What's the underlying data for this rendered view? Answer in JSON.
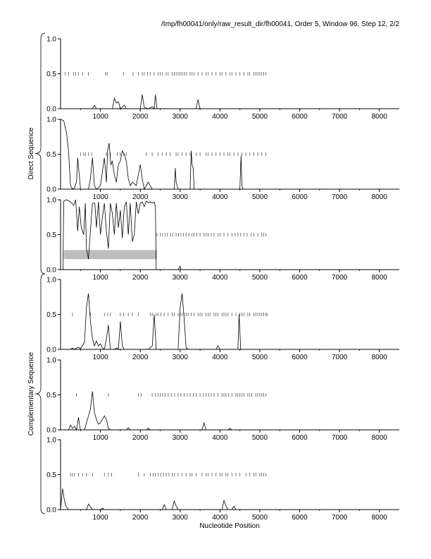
{
  "header": {
    "title": "/tmp/fh00041/only/raw_result_dir/fh00041, Order 5, Window 96, Step 12, 2/2"
  },
  "groups": [
    {
      "label": "Direct Sequence",
      "panels": [
        0,
        1,
        2
      ]
    },
    {
      "label": "Complementary Sequence",
      "panels": [
        3,
        4,
        5
      ]
    }
  ],
  "colors": {
    "line": "#000000",
    "axis": "#000000",
    "band": "#bdbdbd",
    "marks": "#555555"
  },
  "chart_data": {
    "type": "line",
    "xlabel": "Nucleotide Position",
    "ylabel": "",
    "xlim": [
      0,
      8500
    ],
    "ylim": [
      0,
      1
    ],
    "xticks": [
      "1000",
      "2000",
      "3000",
      "4000",
      "5000",
      "6000",
      "7000",
      "8000"
    ],
    "yticks": [
      "0.0",
      "0.5",
      "1.0"
    ],
    "panels": [
      {
        "series": [
          [
            0,
            0
          ],
          [
            300,
            0
          ],
          [
            800,
            0
          ],
          [
            850,
            0.05
          ],
          [
            900,
            0
          ],
          [
            1300,
            0
          ],
          [
            1350,
            0.15
          ],
          [
            1400,
            0.08
          ],
          [
            1450,
            0.1
          ],
          [
            1500,
            0
          ],
          [
            1600,
            0.05
          ],
          [
            1650,
            0
          ],
          [
            2000,
            0
          ],
          [
            2050,
            0.2
          ],
          [
            2100,
            0.02
          ],
          [
            2200,
            0
          ],
          [
            2300,
            0.03
          ],
          [
            2350,
            0
          ],
          [
            2380,
            0.2
          ],
          [
            2420,
            0
          ],
          [
            3400,
            0
          ],
          [
            3450,
            0.13
          ],
          [
            3500,
            0
          ],
          [
            8500,
            0
          ]
        ],
        "marks": [
          120,
          200,
          330,
          380,
          450,
          550,
          700,
          1130,
          1170,
          1580,
          1820,
          1950,
          2050,
          2100,
          2180,
          2250,
          2350,
          2450,
          2500,
          2560,
          2650,
          2700,
          2800,
          2850,
          2900,
          2950,
          3000,
          3050,
          3100,
          3150,
          3250,
          3300,
          3350,
          3450,
          3550,
          3650,
          3700,
          3800,
          3900,
          4000,
          4050,
          4150,
          4250,
          4300,
          4400,
          4500,
          4600,
          4700,
          4750,
          4850,
          4900,
          4950,
          5000,
          5050,
          5100,
          5150
        ]
      },
      {
        "series": [
          [
            0,
            1
          ],
          [
            80,
            0.98
          ],
          [
            150,
            0.8
          ],
          [
            200,
            0.55
          ],
          [
            250,
            0.05
          ],
          [
            300,
            0
          ],
          [
            350,
            0.02
          ],
          [
            400,
            0.1
          ],
          [
            430,
            0.45
          ],
          [
            470,
            0.2
          ],
          [
            500,
            0
          ],
          [
            700,
            0
          ],
          [
            750,
            0.15
          ],
          [
            800,
            0.45
          ],
          [
            850,
            0.05
          ],
          [
            900,
            0
          ],
          [
            1000,
            0.05
          ],
          [
            1050,
            0.25
          ],
          [
            1100,
            0.45
          ],
          [
            1150,
            0.1
          ],
          [
            1180,
            0.55
          ],
          [
            1220,
            0.66
          ],
          [
            1260,
            0.35
          ],
          [
            1300,
            0.4
          ],
          [
            1350,
            0.2
          ],
          [
            1400,
            0.1
          ],
          [
            1450,
            0.35
          ],
          [
            1500,
            0.4
          ],
          [
            1550,
            0.55
          ],
          [
            1600,
            0.5
          ],
          [
            1650,
            0.4
          ],
          [
            1700,
            0.15
          ],
          [
            1750,
            0.05
          ],
          [
            1800,
            0.1
          ],
          [
            1900,
            0.05
          ],
          [
            2000,
            0.35
          ],
          [
            2050,
            0.15
          ],
          [
            2100,
            0
          ],
          [
            2200,
            0.1
          ],
          [
            2250,
            0.05
          ],
          [
            2300,
            0
          ],
          [
            2850,
            0
          ],
          [
            2880,
            0.3
          ],
          [
            2900,
            0.1
          ],
          [
            2950,
            0
          ],
          [
            3250,
            0
          ],
          [
            3280,
            0.55
          ],
          [
            3300,
            0.35
          ],
          [
            3330,
            0.3
          ],
          [
            3350,
            0
          ],
          [
            4500,
            0
          ],
          [
            4530,
            0.48
          ],
          [
            4550,
            0.05
          ],
          [
            4580,
            0
          ],
          [
            8500,
            0
          ]
        ],
        "marks": [
          500,
          580,
          620,
          700,
          780,
          1150,
          1250,
          1420,
          1500,
          1580,
          1650,
          2150,
          2300,
          2450,
          2550,
          2650,
          2750,
          2900,
          2950,
          3050,
          3150,
          3250,
          3400,
          3500,
          3650,
          3700,
          3800,
          3900,
          4000,
          4100,
          4200,
          4250,
          4350,
          4450,
          4550,
          4650,
          4750,
          4850,
          4950,
          5050,
          5150
        ]
      },
      {
        "series": [
          [
            0,
            0
          ],
          [
            60,
            0
          ],
          [
            80,
            0.98
          ],
          [
            150,
            1
          ],
          [
            250,
            0.97
          ],
          [
            330,
            0.92
          ],
          [
            380,
            1
          ],
          [
            430,
            0.55
          ],
          [
            470,
            0.9
          ],
          [
            520,
            0.6
          ],
          [
            580,
            0.5
          ],
          [
            620,
            0.95
          ],
          [
            650,
            0.3
          ],
          [
            700,
            0.15
          ],
          [
            750,
            0.55
          ],
          [
            800,
            0.95
          ],
          [
            860,
            0.95
          ],
          [
            900,
            0.6
          ],
          [
            950,
            0.97
          ],
          [
            1000,
            0.5
          ],
          [
            1050,
            0.75
          ],
          [
            1100,
            0.95
          ],
          [
            1150,
            0.55
          ],
          [
            1200,
            0.3
          ],
          [
            1250,
            0.95
          ],
          [
            1300,
            0.8
          ],
          [
            1350,
            0.5
          ],
          [
            1400,
            0.95
          ],
          [
            1450,
            0.6
          ],
          [
            1500,
            0.85
          ],
          [
            1550,
            0.45
          ],
          [
            1600,
            0.9
          ],
          [
            1650,
            0.97
          ],
          [
            1700,
            0.5
          ],
          [
            1750,
            0.95
          ],
          [
            1800,
            0.4
          ],
          [
            1850,
            0.5
          ],
          [
            1900,
            0.97
          ],
          [
            1950,
            0.8
          ],
          [
            2000,
            0.95
          ],
          [
            2050,
            0.97
          ],
          [
            2100,
            0.9
          ],
          [
            2150,
            0.98
          ],
          [
            2200,
            0.96
          ],
          [
            2250,
            0.97
          ],
          [
            2300,
            0.95
          ],
          [
            2350,
            0.97
          ],
          [
            2380,
            0.9
          ],
          [
            2400,
            0
          ],
          [
            2950,
            0
          ],
          [
            3000,
            0.05
          ],
          [
            3020,
            0
          ],
          [
            8500,
            0
          ]
        ],
        "marks": [
          2420,
          2500,
          2560,
          2620,
          2680,
          2760,
          2820,
          2900,
          2960,
          3020,
          3080,
          3150,
          3220,
          3300,
          3350,
          3420,
          3500,
          3600,
          3650,
          3700,
          3780,
          3850,
          3950,
          4000,
          4100,
          4200,
          4300,
          4380,
          4450,
          4520,
          4600,
          4680,
          4780,
          4850,
          4950,
          5050,
          5100,
          5150
        ],
        "band": {
          "x0": 80,
          "x1": 2420,
          "y0": 0.15,
          "y1": 0.28
        }
      },
      {
        "series": [
          [
            0,
            0
          ],
          [
            250,
            0
          ],
          [
            300,
            0.02
          ],
          [
            350,
            0
          ],
          [
            400,
            0.02
          ],
          [
            450,
            0.03
          ],
          [
            500,
            0.01
          ],
          [
            600,
            0.1
          ],
          [
            650,
            0.6
          ],
          [
            700,
            0.8
          ],
          [
            750,
            0.4
          ],
          [
            800,
            0.15
          ],
          [
            850,
            0.05
          ],
          [
            900,
            0.12
          ],
          [
            950,
            0.05
          ],
          [
            1000,
            0.08
          ],
          [
            1050,
            0.02
          ],
          [
            1100,
            0
          ],
          [
            1150,
            0.15
          ],
          [
            1200,
            0.35
          ],
          [
            1250,
            0
          ],
          [
            1350,
            0
          ],
          [
            1400,
            0.02
          ],
          [
            1450,
            0
          ],
          [
            1500,
            0.4
          ],
          [
            1550,
            0.05
          ],
          [
            1600,
            0
          ],
          [
            2200,
            0
          ],
          [
            2300,
            0.05
          ],
          [
            2350,
            0.5
          ],
          [
            2400,
            0
          ],
          [
            2950,
            0
          ],
          [
            3000,
            0.6
          ],
          [
            3050,
            0.8
          ],
          [
            3100,
            0.45
          ],
          [
            3150,
            0.02
          ],
          [
            3200,
            0
          ],
          [
            3900,
            0
          ],
          [
            3950,
            0.05
          ],
          [
            4000,
            0
          ],
          [
            4450,
            0
          ],
          [
            4480,
            0.5
          ],
          [
            4520,
            0
          ],
          [
            8500,
            0
          ]
        ],
        "marks": [
          300,
          750,
          1100,
          1180,
          1250,
          1500,
          1580,
          1700,
          1800,
          1950,
          2250,
          2300,
          2400,
          2450,
          2520,
          2600,
          2700,
          2800,
          2850,
          2950,
          3000,
          3050,
          3100,
          3150,
          3200,
          3280,
          3350,
          3450,
          3500,
          3550,
          3650,
          3700,
          3750,
          3850,
          3900,
          3950,
          4050,
          4100,
          4150,
          4200,
          4300,
          4400,
          4500,
          4550,
          4600,
          4700,
          4750,
          4850,
          4900,
          4950,
          5000,
          5050,
          5100,
          5150,
          5180
        ]
      },
      {
        "series": [
          [
            0,
            0
          ],
          [
            200,
            0
          ],
          [
            250,
            0.07
          ],
          [
            300,
            0.02
          ],
          [
            350,
            0.05
          ],
          [
            400,
            0
          ],
          [
            450,
            0.18
          ],
          [
            480,
            0.05
          ],
          [
            500,
            0
          ],
          [
            600,
            0
          ],
          [
            650,
            0.1
          ],
          [
            700,
            0.2
          ],
          [
            750,
            0.3
          ],
          [
            800,
            0.55
          ],
          [
            850,
            0.25
          ],
          [
            900,
            0.15
          ],
          [
            950,
            0.08
          ],
          [
            1000,
            0.1
          ],
          [
            1050,
            0.15
          ],
          [
            1100,
            0.2
          ],
          [
            1150,
            0.15
          ],
          [
            1200,
            0.02
          ],
          [
            1250,
            0
          ],
          [
            1650,
            0
          ],
          [
            1700,
            0.03
          ],
          [
            1750,
            0
          ],
          [
            2150,
            0
          ],
          [
            2200,
            0.02
          ],
          [
            2250,
            0
          ],
          [
            3550,
            0
          ],
          [
            3600,
            0.1
          ],
          [
            3650,
            0
          ],
          [
            3700,
            0
          ],
          [
            4200,
            0
          ],
          [
            4250,
            0.02
          ],
          [
            4300,
            0
          ],
          [
            8500,
            0
          ]
        ],
        "marks": [
          400,
          1200,
          1950,
          2020,
          2300,
          2380,
          2450,
          2500,
          2560,
          2620,
          2700,
          2780,
          2860,
          2950,
          3020,
          3100,
          3180,
          3250,
          3330,
          3400,
          3500,
          3580,
          3650,
          3720,
          3780,
          3850,
          3950,
          4050,
          4100,
          4150,
          4220,
          4300,
          4400,
          4450,
          4500,
          4550,
          4600,
          4700,
          4750,
          4800,
          4900,
          4950,
          5000,
          5050,
          5100,
          5150
        ]
      },
      {
        "series": [
          [
            0,
            0
          ],
          [
            50,
            0.3
          ],
          [
            90,
            0.15
          ],
          [
            130,
            0.05
          ],
          [
            200,
            0
          ],
          [
            650,
            0
          ],
          [
            700,
            0.08
          ],
          [
            750,
            0.04
          ],
          [
            800,
            0
          ],
          [
            1000,
            0
          ],
          [
            1050,
            0.02
          ],
          [
            1100,
            0
          ],
          [
            2550,
            0
          ],
          [
            2600,
            0.07
          ],
          [
            2650,
            0
          ],
          [
            2800,
            0
          ],
          [
            2850,
            0.12
          ],
          [
            2900,
            0.05
          ],
          [
            2950,
            0
          ],
          [
            4050,
            0
          ],
          [
            4100,
            0.13
          ],
          [
            4150,
            0.05
          ],
          [
            4200,
            0
          ],
          [
            4300,
            0
          ],
          [
            4350,
            0.05
          ],
          [
            4400,
            0
          ],
          [
            8500,
            0
          ]
        ],
        "marks": [
          250,
          300,
          350,
          450,
          550,
          650,
          800,
          1100,
          1200,
          1280,
          1950,
          2100,
          2250,
          2320,
          2380,
          2450,
          2520,
          2580,
          2650,
          2720,
          2800,
          2860,
          2950,
          3050,
          3150,
          3250,
          3300,
          3400,
          3550,
          3650,
          3700,
          3800,
          3900,
          4000,
          4050,
          4150,
          4200,
          4300,
          4400,
          4500,
          4650,
          4750,
          4850,
          4900,
          5000,
          5050,
          5100,
          5150
        ]
      }
    ]
  }
}
